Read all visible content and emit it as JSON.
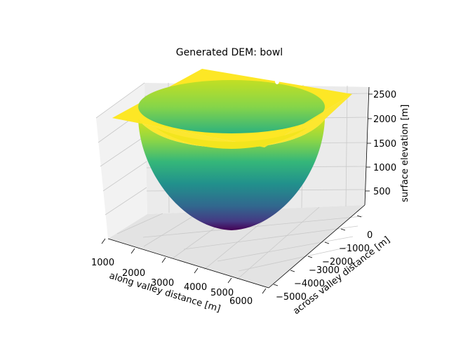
{
  "chart_data": {
    "type": "surface3d",
    "title": "Generated DEM: bowl",
    "xlabel": "along valley distance [m]",
    "ylabel": "across valley distance [m]",
    "zlabel": "surface elevation [m]",
    "x_ticks": [
      "1000",
      "2000",
      "3000",
      "4000",
      "5000",
      "6000"
    ],
    "y_ticks": [
      "0",
      "−1000",
      "−2000",
      "−3000",
      "−4000",
      "−5000"
    ],
    "z_ticks": [
      "500",
      "1000",
      "1500",
      "2000",
      "2500"
    ],
    "xlim": [
      1000,
      6000
    ],
    "ylim": [
      -5000,
      0
    ],
    "zlim": [
      0,
      2500
    ],
    "bowl": {
      "center_x": 3500,
      "center_y": -2500,
      "radius": 2600,
      "rim_elevation": 2500,
      "floor_elevation": 0
    },
    "colormap": "viridis",
    "grid": true
  }
}
